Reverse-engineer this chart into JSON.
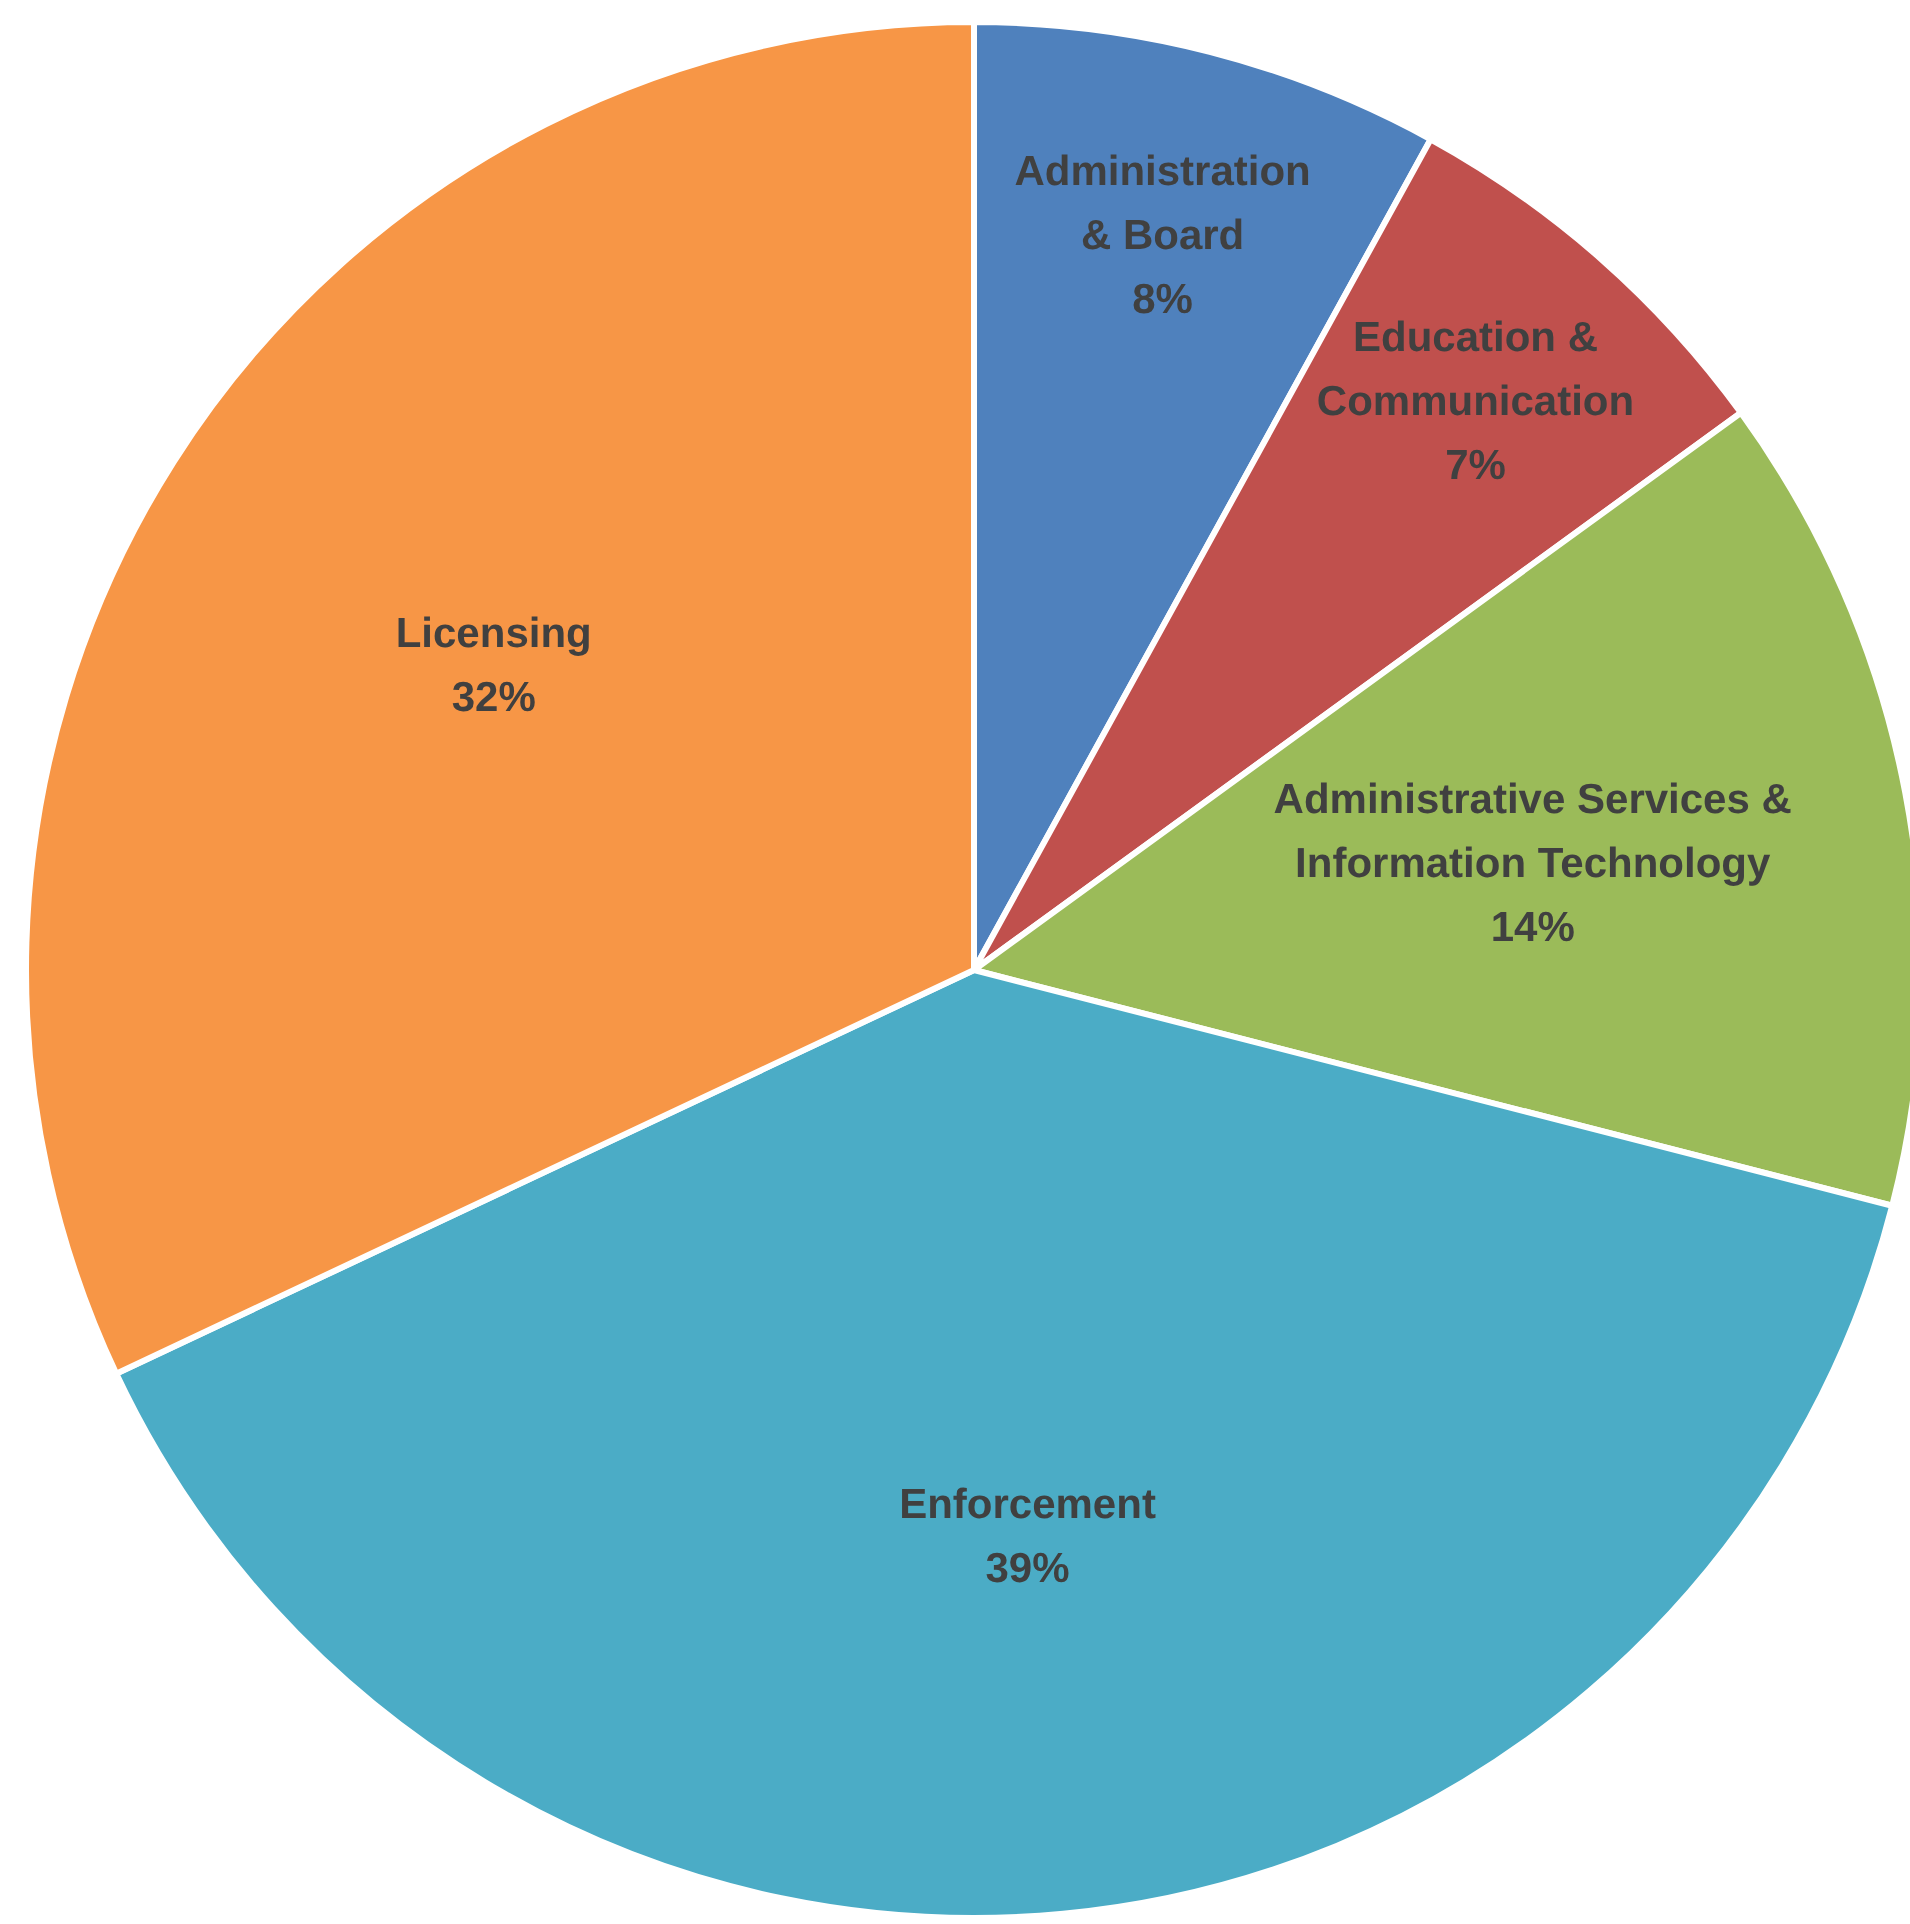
{
  "chart_data": {
    "type": "pie",
    "categories": [
      "Administration & Board",
      "Education & Communication",
      "Administrative Services & Information Technology",
      "Enforcement",
      "Licensing"
    ],
    "values": [
      8,
      7,
      14,
      39,
      32
    ],
    "value_labels": [
      "8%",
      "7%",
      "14%",
      "39%",
      "32%"
    ],
    "colors": [
      "#4f81bd",
      "#c0504d",
      "#9bbb59",
      "#4bacc6",
      "#f79646"
    ]
  }
}
